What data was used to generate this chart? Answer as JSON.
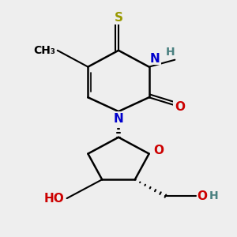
{
  "background_color": "#eeeeee",
  "atom_colors": {
    "C": "#000000",
    "N": "#0000cc",
    "O": "#cc0000",
    "S": "#999900",
    "H": "#4a8080"
  },
  "font_size": 11,
  "fig_size": [
    3.0,
    3.0
  ],
  "dpi": 100
}
